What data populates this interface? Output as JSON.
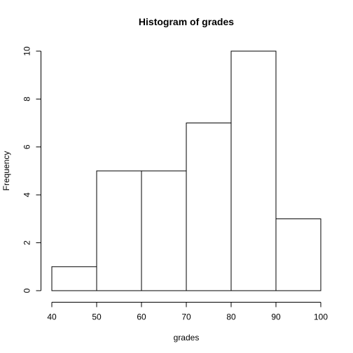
{
  "chart_data": {
    "type": "bar",
    "subtype": "histogram",
    "title": "Histogram of grades",
    "xlabel": "grades",
    "ylabel": "Frequency",
    "bins": [
      {
        "from": 40,
        "to": 50,
        "count": 1
      },
      {
        "from": 50,
        "to": 60,
        "count": 5
      },
      {
        "from": 60,
        "to": 70,
        "count": 5
      },
      {
        "from": 70,
        "to": 80,
        "count": 7
      },
      {
        "from": 80,
        "to": 90,
        "count": 10
      },
      {
        "from": 90,
        "to": 100,
        "count": 3
      }
    ],
    "categories": [
      "40-50",
      "50-60",
      "60-70",
      "70-80",
      "80-90",
      "90-100"
    ],
    "values": [
      1,
      5,
      5,
      7,
      10,
      3
    ],
    "xlim": [
      40,
      100
    ],
    "ylim": [
      0,
      10
    ],
    "x_ticks": [
      "40",
      "50",
      "60",
      "70",
      "80",
      "90",
      "100"
    ],
    "y_ticks": [
      "0",
      "2",
      "4",
      "6",
      "8",
      "10"
    ],
    "grid": false,
    "legend": "none",
    "colors": {
      "bar_fill": "#ffffff",
      "bar_stroke": "#000000",
      "axis": "#000000",
      "background": "#ffffff"
    }
  }
}
